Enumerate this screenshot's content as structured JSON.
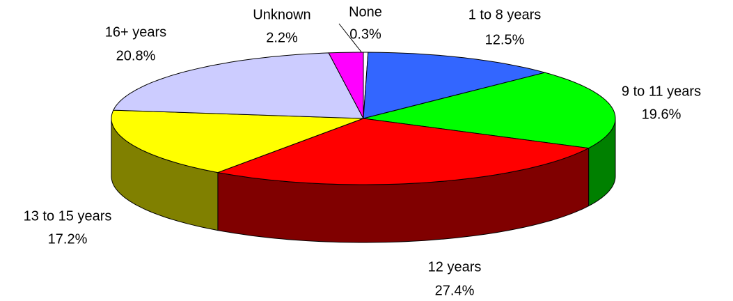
{
  "chart_data": {
    "type": "pie3d",
    "categories": [
      "None",
      "1 to 8 years",
      "9 to 11 years",
      "12 years",
      "13 to 15 years",
      "16+ years",
      "Unknown"
    ],
    "values": [
      0.3,
      12.5,
      19.6,
      27.4,
      17.2,
      20.8,
      2.2
    ],
    "value_labels": [
      "0.3%",
      "12.5%",
      "19.6%",
      "27.4%",
      "17.2%",
      "20.8%",
      "2.2%"
    ],
    "colors": [
      "#ffffff",
      "#3366ff",
      "#00ff00",
      "#ff0000",
      "#ffff00",
      "#ccccff",
      "#ff00ff"
    ],
    "side_colors": [
      "#808080",
      "#1a3380",
      "#008000",
      "#800000",
      "#808000",
      "#666680",
      "#800080"
    ]
  }
}
